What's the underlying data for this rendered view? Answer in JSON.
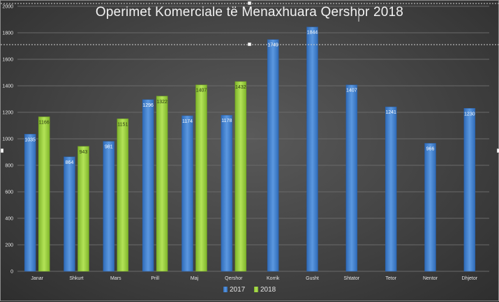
{
  "chart_data": {
    "type": "bar",
    "title": "Operimet Komerciale të Menaxhuara Qershor 2018",
    "categories": [
      "Janar",
      "Shkurt",
      "Mars",
      "Prill",
      "Maj",
      "Qershor",
      "Korrik",
      "Gusht",
      "Shtator",
      "Tetor",
      "Nentor",
      "Dhjetor"
    ],
    "series": [
      {
        "name": "2017",
        "color": "#4a86d0",
        "values": [
          1035,
          864,
          981,
          1296,
          1174,
          1178,
          1749,
          1844,
          1407,
          1241,
          966,
          1230
        ],
        "labels": [
          "1035",
          "864",
          "981",
          "1296",
          "1174",
          "1178",
          "1749",
          "1844",
          "1407",
          "1241",
          "966",
          "1230"
        ]
      },
      {
        "name": "2018",
        "color": "#9bd23e",
        "values": [
          1166,
          943,
          1151,
          1322,
          1407,
          1432,
          null,
          null,
          null,
          null,
          null,
          null
        ],
        "labels": [
          "1166",
          "943",
          "1151",
          "1322",
          "1407",
          "1432",
          "",
          "",
          "",
          "",
          "",
          ""
        ]
      }
    ],
    "ylim": [
      0,
      2000
    ],
    "yticks": [
      "0",
      "200",
      "400",
      "600",
      "800",
      "1000",
      "1200",
      "1400",
      "1600",
      "1800",
      "2000"
    ],
    "yticks_values": [
      0,
      200,
      400,
      600,
      800,
      1000,
      1200,
      1400,
      1600,
      1800,
      2000
    ],
    "grid": true,
    "legend": "bottom-center",
    "xlabel": "",
    "ylabel": ""
  }
}
